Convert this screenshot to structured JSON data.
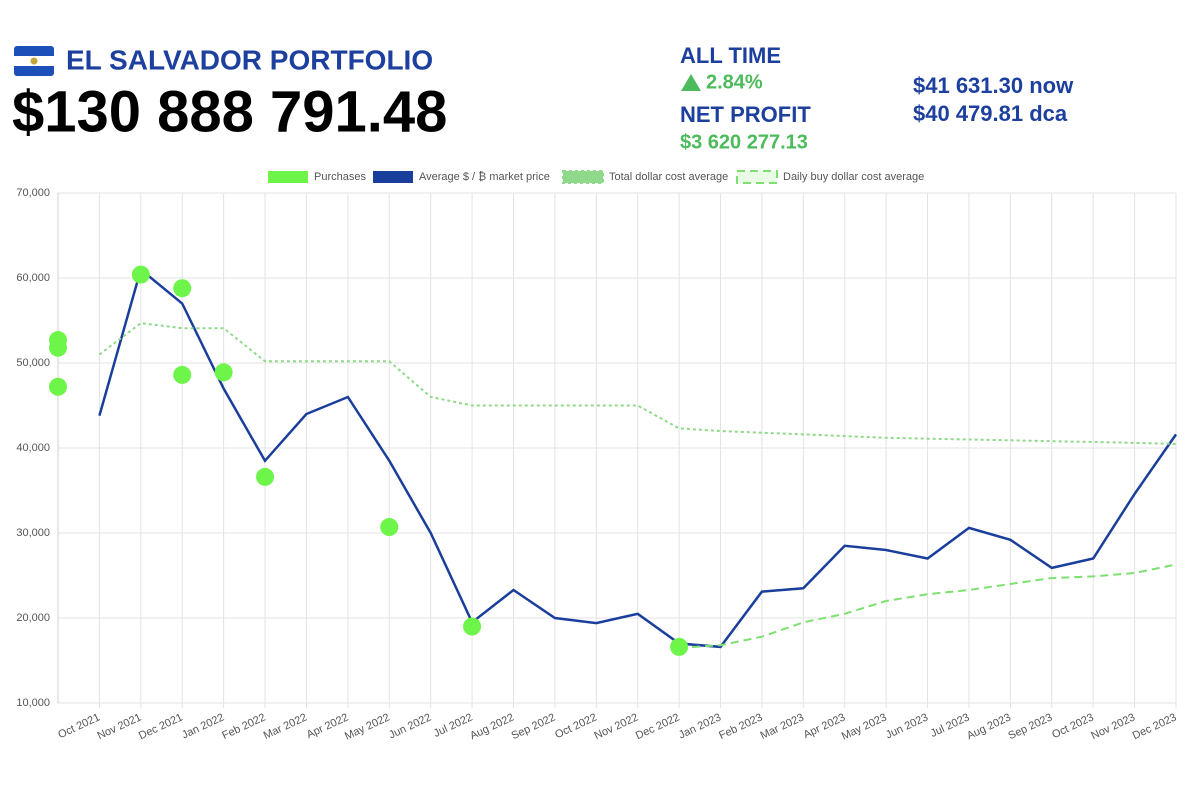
{
  "header": {
    "title": "EL SALVADOR PORTFOLIO",
    "total": "$130 888 791.48",
    "all_time_label": "ALL TIME",
    "all_time_change": "2.84%",
    "net_profit_label": "NET PROFIT",
    "net_profit": "$3 620 277.13",
    "now_price": "$41 631.30 now",
    "dca_price": "$40 479.81 dca"
  },
  "chart_data": {
    "type": "line",
    "x": [
      "2021-10",
      "2021-11",
      "2021-12",
      "2022-01",
      "2022-02",
      "2022-03",
      "2022-04",
      "2022-05",
      "2022-06",
      "2022-07",
      "2022-08",
      "2022-09",
      "2022-10",
      "2022-11",
      "2022-12",
      "2023-01",
      "2023-02",
      "2023-03",
      "2023-04",
      "2023-05",
      "2023-06",
      "2023-07",
      "2023-08",
      "2023-09",
      "2023-10",
      "2023-11",
      "2023-12"
    ],
    "xlim": [
      "2021-09",
      "2023-12"
    ],
    "xticks": [
      {
        "value": "2021-10",
        "label": "Oct 2021"
      },
      {
        "value": "2021-11",
        "label": "Nov 2021"
      },
      {
        "value": "2021-12",
        "label": "Dec 2021"
      },
      {
        "value": "2022-01",
        "label": "Jan 2022"
      },
      {
        "value": "2022-02",
        "label": "Feb 2022"
      },
      {
        "value": "2022-03",
        "label": "Mar 2022"
      },
      {
        "value": "2022-04",
        "label": "Apr 2022"
      },
      {
        "value": "2022-05",
        "label": "May 2022"
      },
      {
        "value": "2022-06",
        "label": "Jun 2022"
      },
      {
        "value": "2022-07",
        "label": "Jul 2022"
      },
      {
        "value": "2022-08",
        "label": "Aug 2022"
      },
      {
        "value": "2022-09",
        "label": "Sep 2022"
      },
      {
        "value": "2022-10",
        "label": "Oct 2022"
      },
      {
        "value": "2022-11",
        "label": "Nov 2022"
      },
      {
        "value": "2022-12",
        "label": "Dec 2022"
      },
      {
        "value": "2023-01",
        "label": "Jan 2023"
      },
      {
        "value": "2023-02",
        "label": "Feb 2023"
      },
      {
        "value": "2023-03",
        "label": "Mar 2023"
      },
      {
        "value": "2023-04",
        "label": "Apr 2023"
      },
      {
        "value": "2023-05",
        "label": "May 2023"
      },
      {
        "value": "2023-06",
        "label": "Jun 2023"
      },
      {
        "value": "2023-07",
        "label": "Jul 2023"
      },
      {
        "value": "2023-08",
        "label": "Aug 2023"
      },
      {
        "value": "2023-09",
        "label": "Sep 2023"
      },
      {
        "value": "2023-10",
        "label": "Oct 2023"
      },
      {
        "value": "2023-11",
        "label": "Nov 2023"
      },
      {
        "value": "2023-12",
        "label": "Dec 2023"
      }
    ],
    "ylim": [
      10000,
      70000
    ],
    "yticks": [
      {
        "value": 10000,
        "label": "10,000"
      },
      {
        "value": 20000,
        "label": "20,000"
      },
      {
        "value": 30000,
        "label": "30,000"
      },
      {
        "value": 40000,
        "label": "40,000"
      },
      {
        "value": 50000,
        "label": "50,000"
      },
      {
        "value": 60000,
        "label": "60,000"
      },
      {
        "value": 70000,
        "label": "70,000"
      }
    ],
    "grid": true,
    "series": [
      {
        "name": "Purchases",
        "type": "scatter",
        "color": "#6ef54a",
        "x": [
          "2021-09",
          "2021-09",
          "2021-09",
          "2021-11",
          "2021-12",
          "2021-12",
          "2022-01",
          "2022-02",
          "2022-05",
          "2022-07",
          "2022-12"
        ],
        "values": [
          51800,
          52700,
          47200,
          60400,
          58800,
          48600,
          48900,
          36600,
          30700,
          19000,
          16600
        ]
      },
      {
        "name": "Average $ / ₿ market price",
        "type": "line",
        "style": "solid",
        "color": "#1a3e9c",
        "values": [
          43800,
          61000,
          57000,
          47000,
          38500,
          44000,
          46000,
          38500,
          30000,
          19500,
          23300,
          20000,
          19400,
          20500,
          17000,
          16600,
          23100,
          23500,
          28500,
          28000,
          27000,
          30600,
          29200,
          25900,
          27000,
          34600,
          41600
        ]
      },
      {
        "name": "Total dollar cost average",
        "type": "line",
        "style": "dotted",
        "color": "#8fd98a",
        "values": [
          51000,
          54700,
          54100,
          54100,
          50200,
          50200,
          50200,
          50200,
          46000,
          45000,
          45000,
          45000,
          45000,
          45000,
          42300,
          42000,
          41800,
          41600,
          41400,
          41200,
          41100,
          41000,
          40900,
          40800,
          40700,
          40600,
          40480
        ]
      },
      {
        "name": "Daily buy dollar cost average",
        "type": "line",
        "style": "dashed",
        "color": "#7ee070",
        "values": [
          null,
          null,
          null,
          null,
          null,
          null,
          null,
          null,
          null,
          null,
          null,
          null,
          null,
          null,
          16500,
          16800,
          17800,
          19500,
          20500,
          22000,
          22800,
          23300,
          24000,
          24700,
          24900,
          25300,
          26300
        ]
      }
    ]
  }
}
